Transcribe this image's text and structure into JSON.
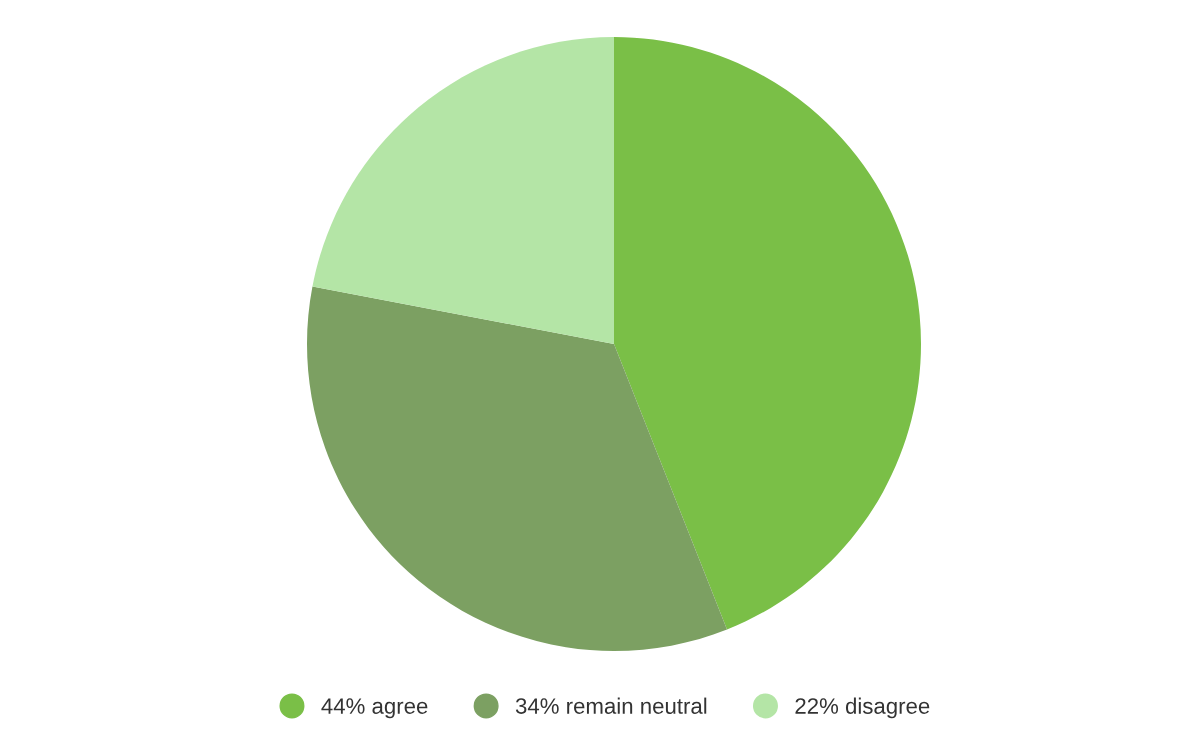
{
  "chart_data": {
    "type": "pie",
    "categories": [
      "44% agree",
      "34% remain neutral",
      "22% disagree"
    ],
    "values": [
      44,
      34,
      22
    ],
    "colors": [
      "#7abf47",
      "#7ca062",
      "#b4e5a6"
    ],
    "legend": "bottom"
  }
}
